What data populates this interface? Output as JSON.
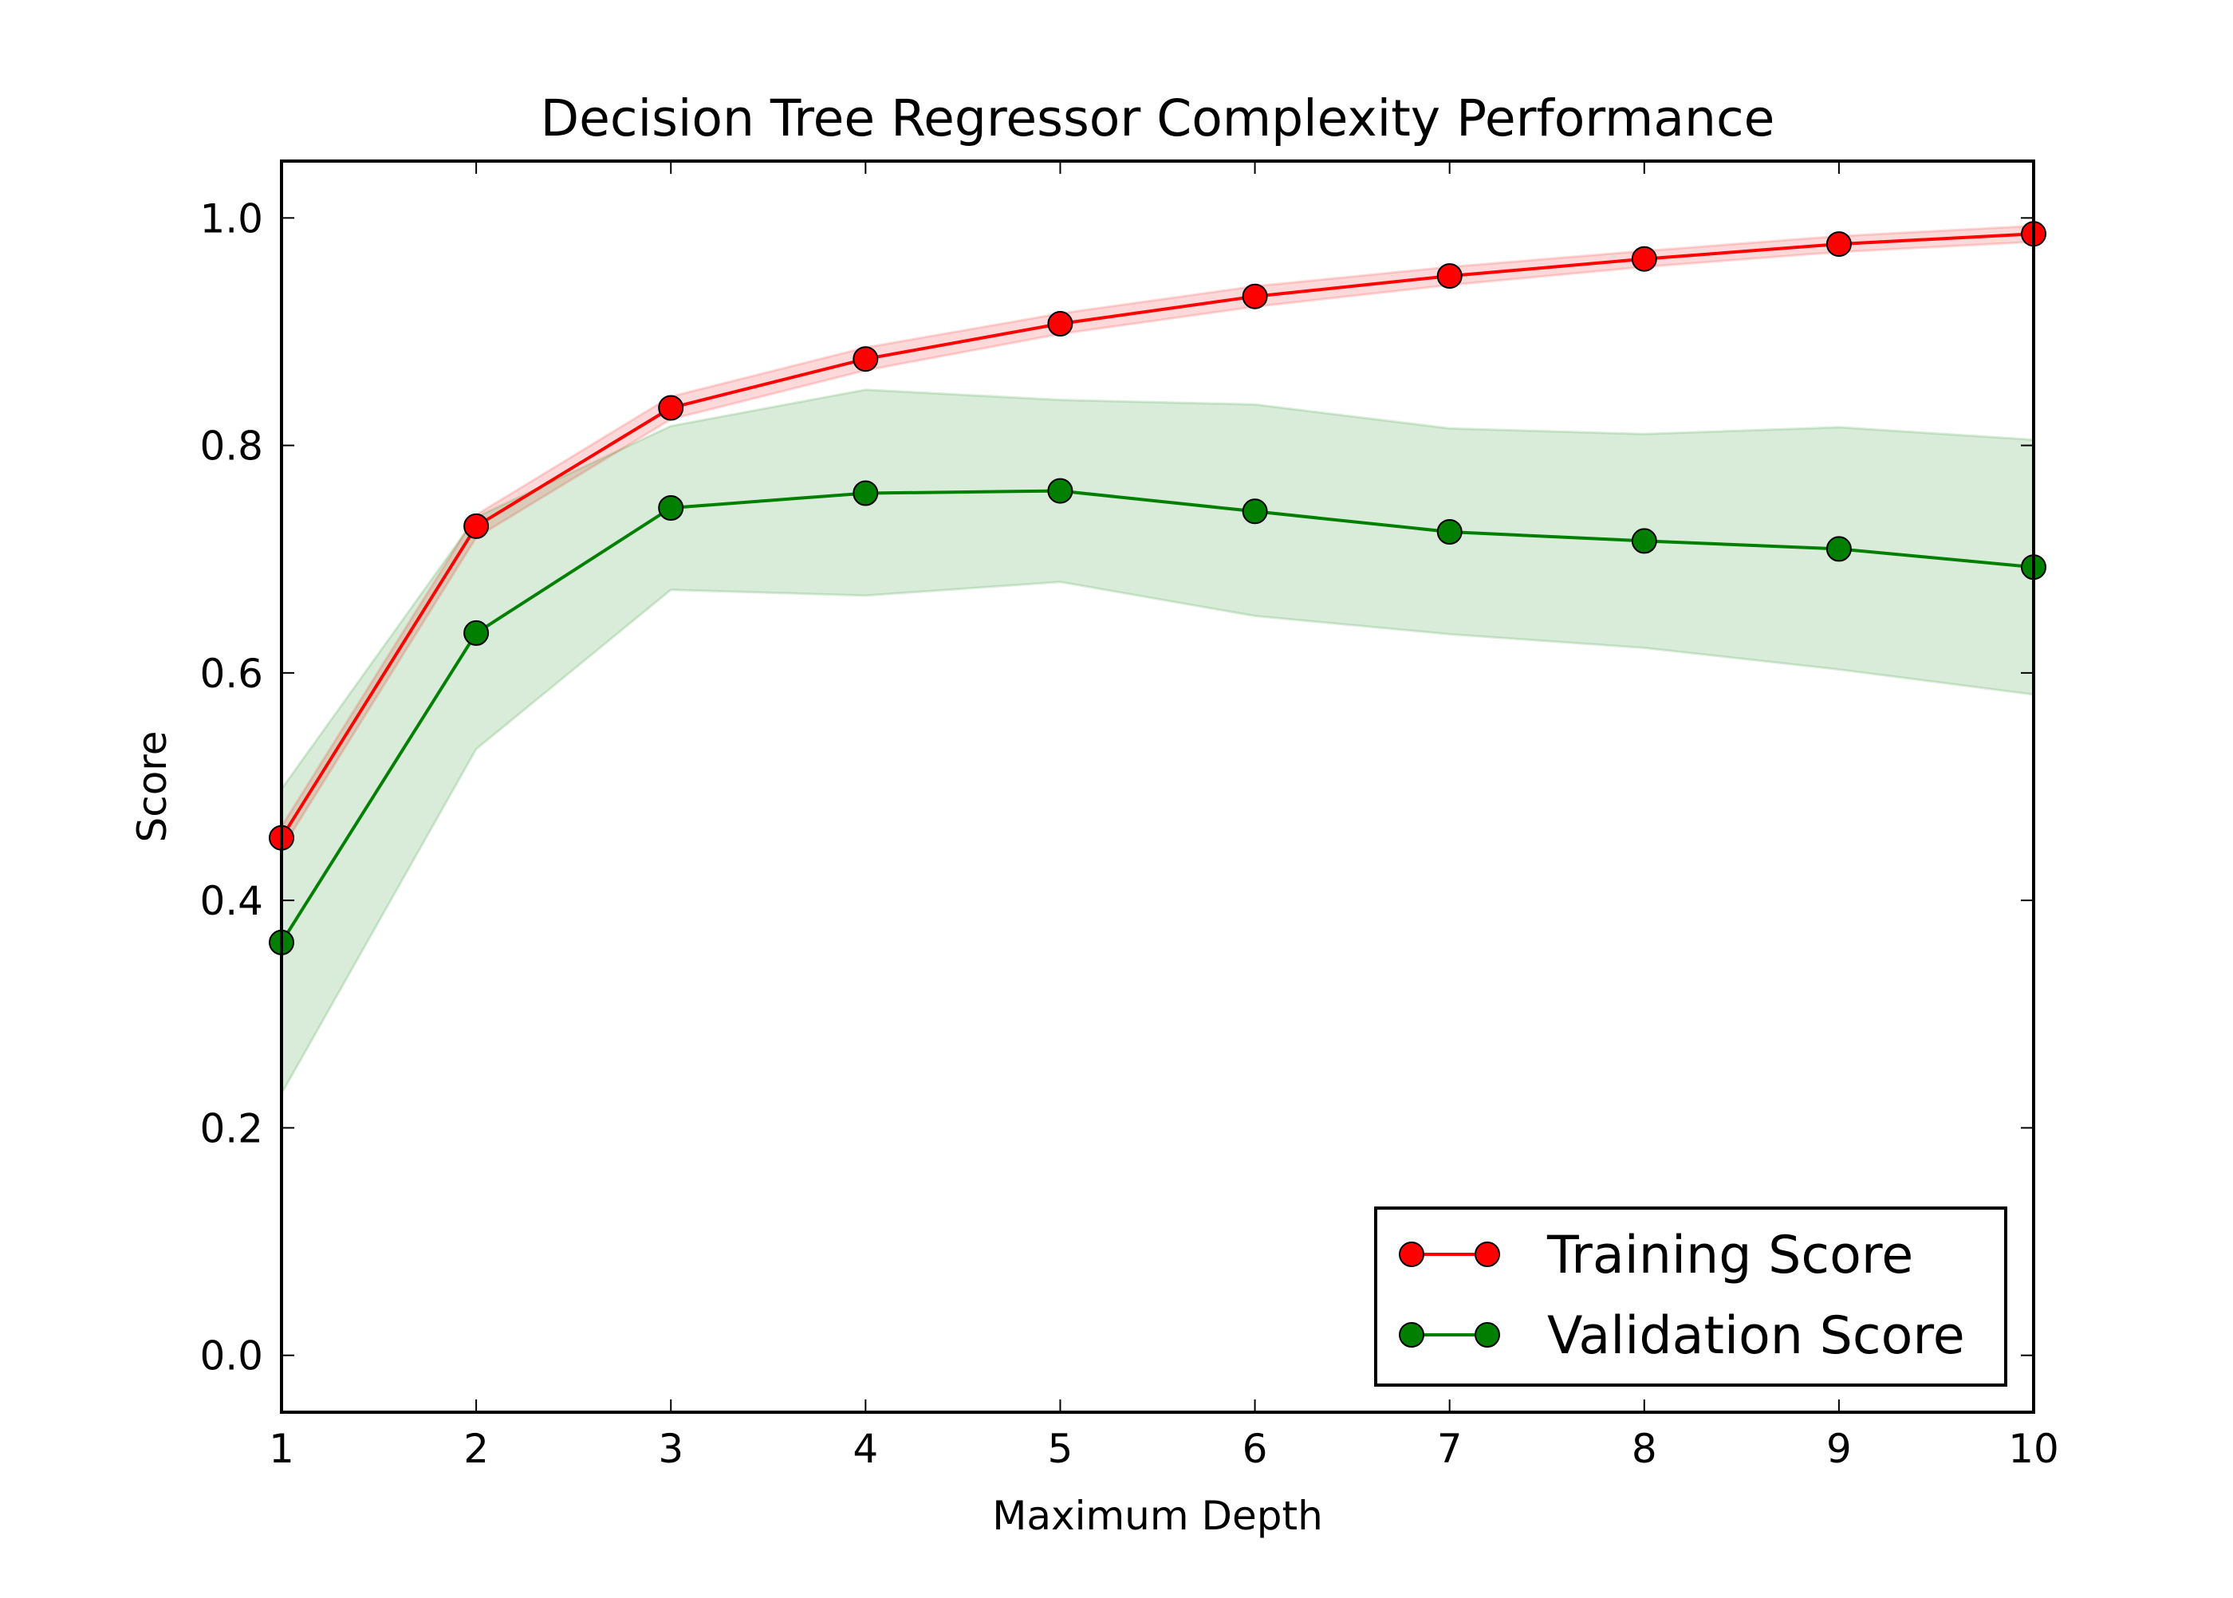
{
  "chart_data": {
    "type": "line",
    "title": "Decision Tree Regressor Complexity Performance",
    "xlabel": "Maximum Depth",
    "ylabel": "Score",
    "xlim": [
      1,
      10
    ],
    "ylim": [
      -0.05,
      1.05
    ],
    "xticks": [
      1,
      2,
      3,
      4,
      5,
      6,
      7,
      8,
      9,
      10
    ],
    "xtick_labels": [
      "1",
      "2",
      "3",
      "4",
      "5",
      "6",
      "7",
      "8",
      "9",
      "10"
    ],
    "yticks": [
      0.0,
      0.2,
      0.4,
      0.6,
      0.8,
      1.0
    ],
    "ytick_labels": [
      "0.0",
      "0.2",
      "0.4",
      "0.6",
      "0.8",
      "1.0"
    ],
    "grid": false,
    "legend_position": "lower-right",
    "x": [
      1,
      2,
      3,
      4,
      5,
      6,
      7,
      8,
      9,
      10
    ],
    "series": [
      {
        "name": "Training Score",
        "color": "#ff0000",
        "band_color": "#ff0000",
        "values": [
          0.455,
          0.729,
          0.833,
          0.876,
          0.907,
          0.931,
          0.949,
          0.964,
          0.977,
          0.986
        ],
        "lower": [
          0.445,
          0.719,
          0.823,
          0.866,
          0.898,
          0.922,
          0.941,
          0.957,
          0.97,
          0.979
        ],
        "upper": [
          0.465,
          0.739,
          0.843,
          0.886,
          0.916,
          0.94,
          0.957,
          0.971,
          0.984,
          0.993
        ]
      },
      {
        "name": "Validation Score",
        "color": "#007f00",
        "band_color": "#008000",
        "values": [
          0.363,
          0.635,
          0.745,
          0.758,
          0.76,
          0.742,
          0.724,
          0.716,
          0.709,
          0.693
        ],
        "lower": [
          0.23,
          0.533,
          0.673,
          0.668,
          0.68,
          0.65,
          0.634,
          0.622,
          0.603,
          0.581
        ],
        "upper": [
          0.498,
          0.737,
          0.817,
          0.849,
          0.84,
          0.836,
          0.815,
          0.81,
          0.816,
          0.805
        ]
      }
    ]
  }
}
